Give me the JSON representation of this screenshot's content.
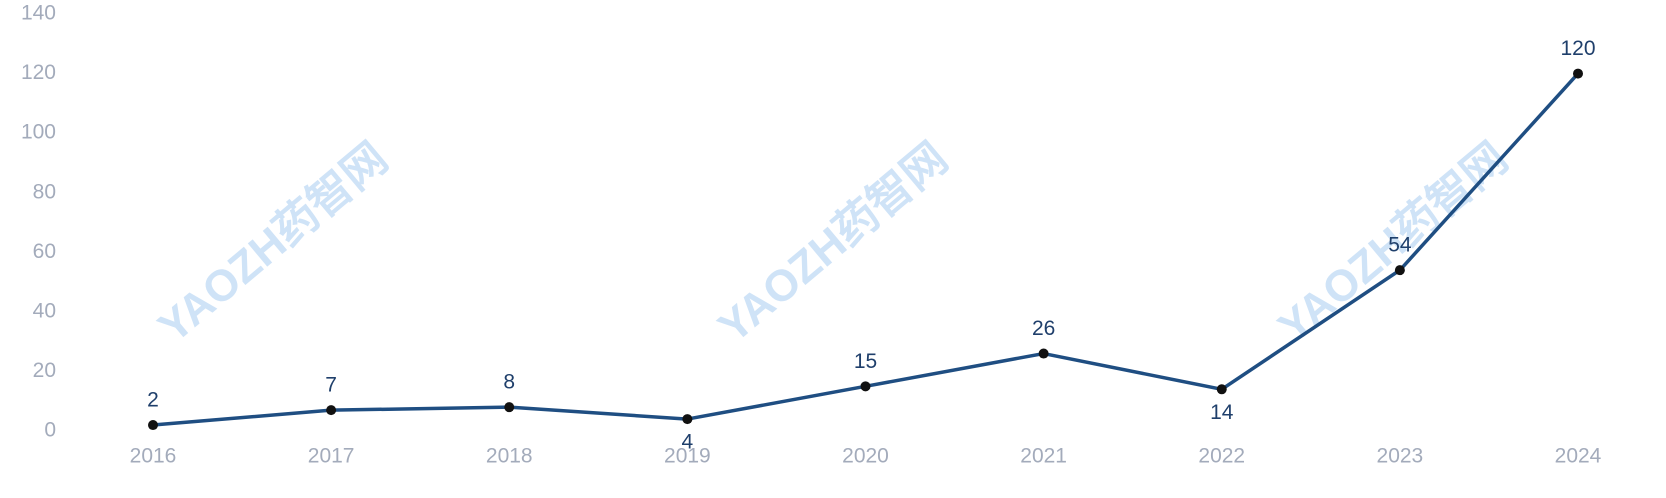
{
  "chart_data": {
    "type": "line",
    "watermark": "YAOZH药智网",
    "categories": [
      "2016",
      "2017",
      "2018",
      "2019",
      "2020",
      "2021",
      "2022",
      "2023",
      "2024"
    ],
    "series": [
      {
        "color": "#1f4e82",
        "values": [
          2,
          7,
          8,
          4,
          15,
          26,
          14,
          54,
          120
        ]
      }
    ],
    "ylim": [
      0,
      140
    ],
    "yticks": [
      0,
      20,
      40,
      60,
      80,
      100,
      120,
      140
    ],
    "grid": false
  }
}
